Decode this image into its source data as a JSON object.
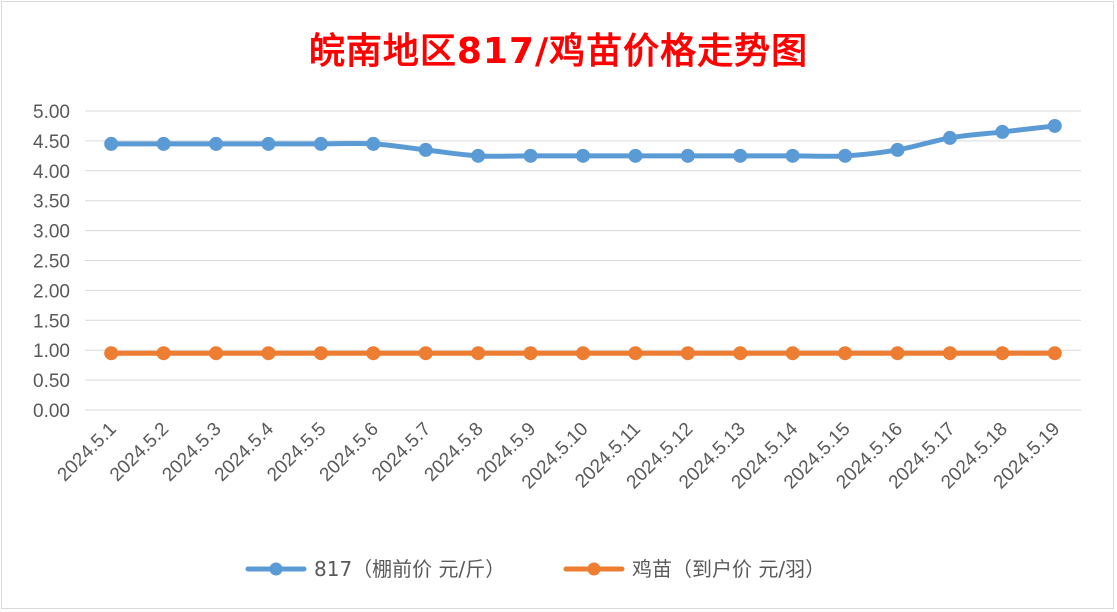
{
  "chart_data": {
    "type": "line",
    "title": "皖南地区817/鸡苗价格走势图",
    "categories": [
      "2024.5.1",
      "2024.5.2",
      "2024.5.3",
      "2024.5.4",
      "2024.5.5",
      "2024.5.6",
      "2024.5.7",
      "2024.5.8",
      "2024.5.9",
      "2024.5.10",
      "2024.5.11",
      "2024.5.12",
      "2024.5.13",
      "2024.5.14",
      "2024.5.15",
      "2024.5.16",
      "2024.5.17",
      "2024.5.18",
      "2024.5.19"
    ],
    "series": [
      {
        "name": "817（棚前价 元/斤）",
        "color": "#5b9bd5",
        "values": [
          4.45,
          4.45,
          4.45,
          4.45,
          4.45,
          4.45,
          4.35,
          4.25,
          4.25,
          4.25,
          4.25,
          4.25,
          4.25,
          4.25,
          4.25,
          4.35,
          4.55,
          4.65,
          4.75
        ]
      },
      {
        "name": "鸡苗（到户价 元/羽）",
        "color": "#ed7d31",
        "values": [
          0.95,
          0.95,
          0.95,
          0.95,
          0.95,
          0.95,
          0.95,
          0.95,
          0.95,
          0.95,
          0.95,
          0.95,
          0.95,
          0.95,
          0.95,
          0.95,
          0.95,
          0.95,
          0.95
        ]
      }
    ],
    "yticks": [
      "0.00",
      "0.50",
      "1.00",
      "1.50",
      "2.00",
      "2.50",
      "3.00",
      "3.50",
      "4.00",
      "4.50",
      "5.00"
    ],
    "ylim": [
      0,
      5
    ],
    "grid": true,
    "legend": "bottom",
    "title_color": "#ff0000"
  }
}
